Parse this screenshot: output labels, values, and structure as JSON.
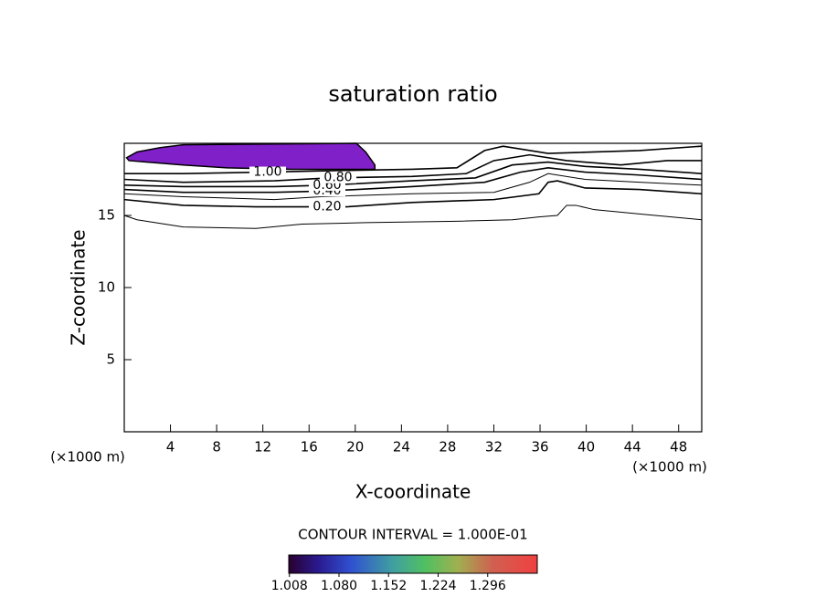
{
  "chart_data": {
    "type": "contour",
    "title": "saturation ratio",
    "x_label": "X-coordinate",
    "y_label": "Z-coordinate",
    "x_unit_label": "(×1000 m)",
    "xlim": [
      0,
      50
    ],
    "xticks": [
      4,
      8,
      12,
      16,
      20,
      24,
      28,
      32,
      36,
      40,
      44,
      48
    ],
    "ylim": [
      0,
      20
    ],
    "yticks": [
      5,
      10,
      15
    ],
    "filled_regions": [
      {
        "color": "#8020c8",
        "x": [
          0.2,
          1.1,
          3.1,
          5.1,
          20.1,
          20.9,
          21.7,
          21.7,
          14.6,
          8.9,
          5.1,
          1.9,
          0.4
        ],
        "y": [
          19.0,
          19.4,
          19.7,
          19.9,
          20,
          19.4,
          18.5,
          18.2,
          18.2,
          18.3,
          18.5,
          18.7,
          18.8
        ]
      }
    ],
    "contours": [
      {
        "x": [
          0,
          1.1,
          5.1,
          11.4,
          15.4,
          20.9,
          28.8,
          33.6,
          35.9,
          37.5,
          38.3,
          39.1,
          40.7,
          44.6,
          50
        ],
        "y": [
          15.0,
          14.7,
          14.2,
          14.1,
          14.4,
          14.5,
          14.6,
          14.7,
          14.9,
          15.0,
          15.7,
          15.7,
          15.4,
          15.1,
          14.7
        ]
      },
      {
        "label": "0.20",
        "x": [
          0,
          5.1,
          11.4,
          16.2,
          19.3,
          24.9,
          32,
          35.9,
          36.7,
          37.5,
          39.9,
          44.6,
          50
        ],
        "y": [
          16.1,
          15.7,
          15.6,
          15.6,
          15.6,
          15.9,
          16.1,
          16.5,
          17.3,
          17.4,
          16.9,
          16.8,
          16.5
        ]
      },
      {
        "x": [
          0,
          5.1,
          13,
          17,
          24.9,
          32,
          35.1,
          36.7,
          39.9,
          44.6,
          50
        ],
        "y": [
          16.5,
          16.3,
          16.1,
          16.3,
          16.5,
          16.6,
          17.3,
          17.9,
          17.5,
          17.3,
          17.1
        ]
      },
      {
        "label": "0.40",
        "x": [
          0,
          5.1,
          13,
          17.7,
          24.9,
          31.2,
          34.3,
          36.7,
          39.9,
          44.6,
          50
        ],
        "y": [
          16.8,
          16.6,
          16.6,
          16.7,
          17.0,
          17.3,
          18.0,
          18.3,
          18.0,
          17.8,
          17.5
        ]
      },
      {
        "label": "0.60",
        "x": [
          0,
          5.1,
          13,
          17.7,
          24.9,
          30.4,
          33.6,
          36.7,
          39.9,
          44.6,
          50
        ],
        "y": [
          17.1,
          17.0,
          17.0,
          17.1,
          17.4,
          17.6,
          18.5,
          18.7,
          18.4,
          18.2,
          17.9
        ]
      },
      {
        "label": "0.80",
        "x": [
          0,
          5.1,
          13,
          17.7,
          24.9,
          29.6,
          32,
          35.1,
          38.3,
          43,
          47,
          50
        ],
        "y": [
          17.5,
          17.3,
          17.4,
          17.6,
          17.7,
          17.9,
          18.8,
          19.2,
          18.8,
          18.5,
          18.8,
          18.8
        ]
      },
      {
        "label": "1.00",
        "x": [
          0,
          5.1,
          12.2,
          17.7,
          24.9,
          28.8,
          31.2,
          32.8,
          36.7,
          44.6,
          50
        ],
        "y": [
          17.9,
          17.9,
          18.0,
          18.1,
          18.2,
          18.3,
          19.5,
          19.8,
          19.3,
          19.5,
          19.8
        ]
      }
    ],
    "colorbar_title": "CONTOUR INTERVAL = 1.000E-01",
    "clim": [
      1.007,
      1.368
    ],
    "cticks": [
      1.008,
      {
        "value": 1.08,
        "label": "1.080"
      },
      1.152,
      1.224,
      1.296
    ]
  }
}
